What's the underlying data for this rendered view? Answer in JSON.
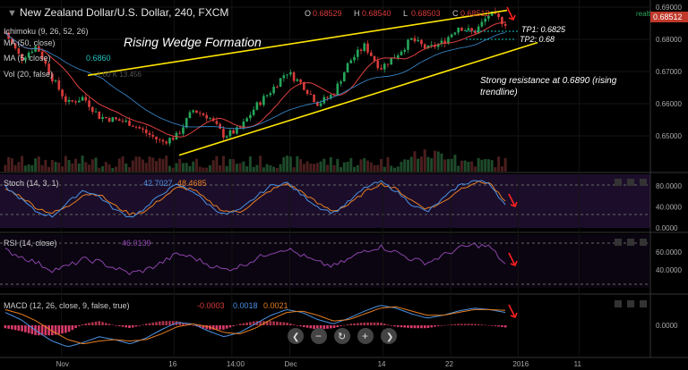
{
  "header": {
    "title": "New Zealand Dollar/U.S. Dollar, 240, FXCM",
    "ohlc": [
      {
        "label": "O",
        "value": "0.68529"
      },
      {
        "label": "H",
        "value": "0.68540"
      },
      {
        "label": "L",
        "value": "0.68503"
      },
      {
        "label": "C",
        "value": "0.68512"
      }
    ],
    "realtime_label": "realtime"
  },
  "main_panel": {
    "last_price": "0.68512",
    "ichimoku": "Ichimoku (9, 26, 52, 26)",
    "ma_line": "MA (50, close)",
    "ma_value": "0.6860",
    "ma_dim": "MA (5, close)",
    "vol": "Vol (20, false)",
    "vol_value": "1.00 K 13.456"
  },
  "annotations": {
    "title": "Rising Wedge Formation",
    "resistance": "Strong resistance at 0.6890 (rising trendline)",
    "resistance_line1": "Strong resistance at 0.6890 (rising",
    "resistance_line2": "trendline)",
    "tp1": "TP1: 0.6825",
    "tp2": "TP2: 0.68"
  },
  "stoch": {
    "label": "Stoch (14, 3, 1)",
    "k": "42.7027",
    "d": "48.4685"
  },
  "rsi": {
    "label": "RSI (14, close)",
    "value": "46.0139"
  },
  "macd": {
    "label": "MACD (12, 26, close, 9, false, true)",
    "hist": "-0.0003",
    "macd": "0.0018",
    "signal": "0.0021"
  },
  "x_ticks": [
    "Nov",
    "16",
    "14:00",
    "Dec",
    "14",
    "22",
    "2016",
    "11"
  ],
  "colors": {
    "wedge": "#ffe600",
    "up": "#26a65b",
    "down": "#d93b3b",
    "stoch_k": "#4a90e2",
    "stoch_d": "#e67e22",
    "rsi": "#8e44ad",
    "arrow": "#ff2020"
  },
  "chart_data": [
    {
      "type": "line",
      "title": "New Zealand Dollar/U.S. Dollar, 240, FXCM",
      "ylim": [
        0.64,
        0.69
      ],
      "y_ticks": [
        "0.69000",
        "0.68000",
        "0.67000",
        "0.66000",
        "0.65000"
      ],
      "y_tick_values": [
        0.69,
        0.68,
        0.67,
        0.66,
        0.65
      ],
      "price_path": [
        0.682,
        0.674,
        0.678,
        0.668,
        0.66,
        0.662,
        0.656,
        0.655,
        0.654,
        0.651,
        0.648,
        0.65,
        0.658,
        0.656,
        0.65,
        0.652,
        0.659,
        0.664,
        0.67,
        0.666,
        0.66,
        0.663,
        0.673,
        0.678,
        0.671,
        0.675,
        0.68,
        0.677,
        0.679,
        0.684,
        0.682,
        0.688,
        0.685
      ],
      "wedge_upper": [
        {
          "x": 0,
          "y": 0.6688
        },
        {
          "x": 1,
          "y": 0.689
        }
      ],
      "wedge_lower": [
        {
          "x": 0,
          "y": 0.644
        },
        {
          "x": 1,
          "y": 0.679
        }
      ],
      "tp1": 0.6825,
      "tp2": 0.68
    },
    {
      "type": "line",
      "title": "Stoch (14, 3, 1)",
      "ylim": [
        0,
        100
      ],
      "y_ticks": [
        "80.0000",
        "40.0000",
        "0.0000"
      ],
      "y_tick_values": [
        80,
        40,
        0
      ],
      "series": [
        {
          "name": "%K",
          "values": [
            78,
            55,
            30,
            22,
            48,
            72,
            60,
            35,
            20,
            38,
            65,
            82,
            70,
            44,
            25,
            33,
            58,
            80,
            86,
            62,
            40,
            28,
            50,
            76,
            88,
            70,
            45,
            30,
            55,
            80,
            90,
            85,
            42
          ]
        },
        {
          "name": "%D",
          "values": [
            74,
            60,
            38,
            28,
            40,
            64,
            64,
            42,
            26,
            32,
            56,
            76,
            74,
            50,
            32,
            30,
            50,
            72,
            84,
            68,
            46,
            32,
            44,
            68,
            84,
            74,
            52,
            36,
            48,
            72,
            86,
            86,
            48
          ]
        }
      ]
    },
    {
      "type": "line",
      "title": "RSI (14, close)",
      "ylim": [
        20,
        80
      ],
      "y_ticks": [
        "60.0000",
        "40.0000"
      ],
      "y_tick_values": [
        60,
        40
      ],
      "series": [
        {
          "name": "RSI",
          "values": [
            62,
            55,
            48,
            40,
            44,
            52,
            49,
            42,
            36,
            40,
            48,
            58,
            54,
            46,
            40,
            44,
            52,
            60,
            64,
            56,
            48,
            44,
            52,
            62,
            66,
            60,
            52,
            48,
            56,
            64,
            68,
            66,
            46
          ]
        }
      ]
    },
    {
      "type": "bar",
      "title": "MACD (12, 26, close, 9, false, true)",
      "ylim": [
        -0.004,
        0.004
      ],
      "y_ticks": [
        "0.0000"
      ],
      "y_tick_values": [
        0
      ],
      "series": [
        {
          "name": "MACD",
          "values": [
            0.0018,
            0.0008,
            -0.0008,
            -0.0022,
            -0.003,
            -0.0024,
            -0.0016,
            -0.002,
            -0.0026,
            -0.0018,
            -0.0006,
            0.0004,
            0.0002,
            -0.0008,
            -0.0016,
            -0.001,
            0.0002,
            0.0014,
            0.0022,
            0.0018,
            0.0008,
            0.0002,
            0.001,
            0.002,
            0.0028,
            0.0024,
            0.0016,
            0.001,
            0.0014,
            0.002,
            0.0024,
            0.0022,
            0.0018
          ]
        },
        {
          "name": "Signal",
          "values": [
            0.0022,
            0.0016,
            0.0006,
            -0.0008,
            -0.002,
            -0.0026,
            -0.0022,
            -0.002,
            -0.0022,
            -0.002,
            -0.0012,
            -0.0002,
            0.0002,
            -0.0002,
            -0.001,
            -0.0012,
            -0.0004,
            0.0008,
            0.0018,
            0.002,
            0.0014,
            0.0006,
            0.0008,
            0.0016,
            0.0024,
            0.0026,
            0.002,
            0.0014,
            0.0014,
            0.0018,
            0.0022,
            0.0022,
            0.0021
          ]
        },
        {
          "name": "Histogram",
          "values": [
            -0.0004,
            -0.0008,
            -0.0014,
            -0.0014,
            -0.001,
            0.0002,
            0.0006,
            0.0,
            -0.0004,
            0.0002,
            0.0006,
            0.0006,
            0.0,
            -0.0006,
            -0.0006,
            0.0002,
            0.0006,
            0.0006,
            0.0004,
            -0.0002,
            -0.0006,
            -0.0004,
            0.0002,
            0.0004,
            0.0004,
            -0.0002,
            -0.0004,
            -0.0004,
            0.0,
            0.0002,
            0.0002,
            0.0,
            -0.0003
          ]
        }
      ]
    }
  ]
}
